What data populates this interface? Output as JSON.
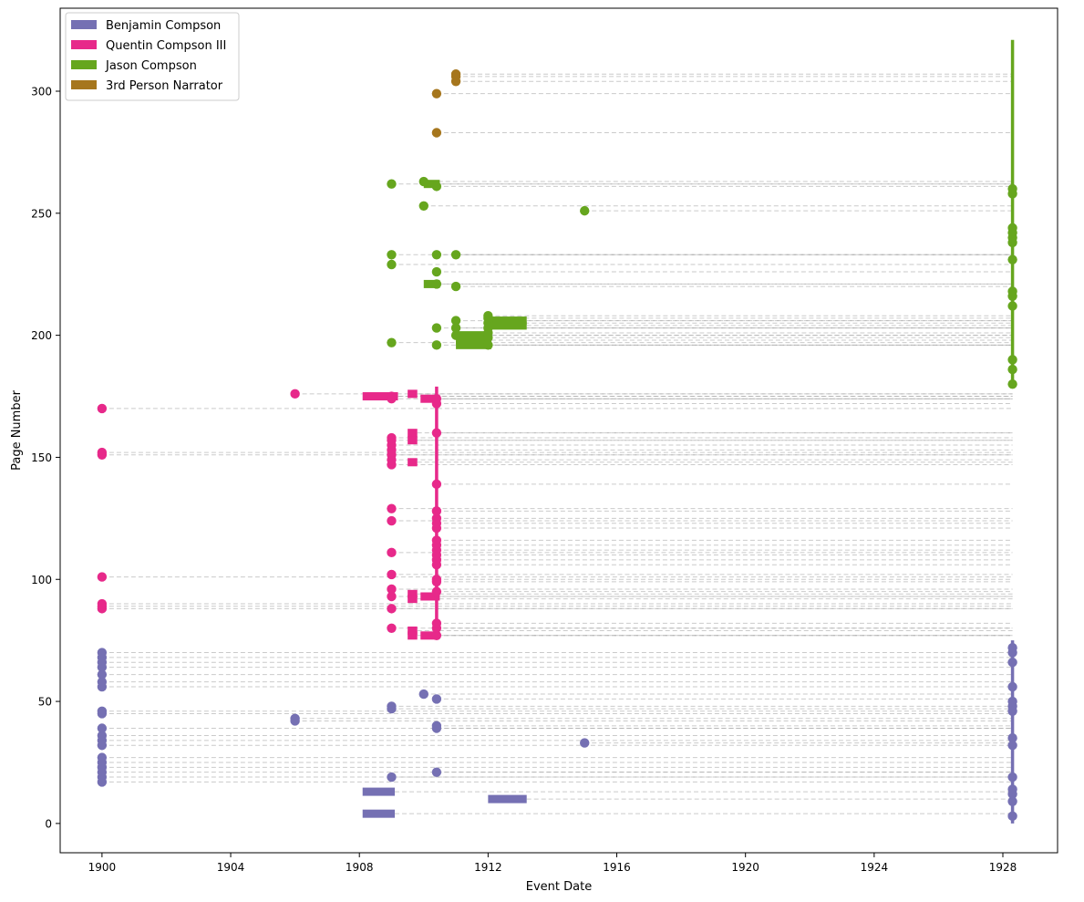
{
  "chart_data": {
    "type": "scatter",
    "xlabel": "Event Date",
    "ylabel": "Page Number",
    "xlim": [
      1898.7,
      1929.7
    ],
    "ylim": [
      -12,
      334
    ],
    "xticks": [
      1900,
      1904,
      1908,
      1912,
      1916,
      1920,
      1924,
      1928
    ],
    "yticks": [
      0,
      50,
      100,
      150,
      200,
      250,
      300
    ],
    "grid": false,
    "legend_placement": "top-left",
    "reading_year": 1928.3,
    "series": [
      {
        "name": "Benjamin Compson",
        "color": "#7570b3",
        "points": [
          {
            "x": 1900,
            "y": 17
          },
          {
            "x": 1900,
            "y": 19
          },
          {
            "x": 1900,
            "y": 21
          },
          {
            "x": 1900,
            "y": 23
          },
          {
            "x": 1900,
            "y": 25
          },
          {
            "x": 1900,
            "y": 27
          },
          {
            "x": 1900,
            "y": 32
          },
          {
            "x": 1900,
            "y": 34
          },
          {
            "x": 1900,
            "y": 36
          },
          {
            "x": 1900,
            "y": 39
          },
          {
            "x": 1900,
            "y": 45
          },
          {
            "x": 1900,
            "y": 46
          },
          {
            "x": 1900,
            "y": 56
          },
          {
            "x": 1900,
            "y": 58
          },
          {
            "x": 1900,
            "y": 61
          },
          {
            "x": 1900,
            "y": 64
          },
          {
            "x": 1900,
            "y": 66
          },
          {
            "x": 1900,
            "y": 68
          },
          {
            "x": 1900,
            "y": 70
          },
          {
            "x": 1906,
            "y": 42
          },
          {
            "x": 1906,
            "y": 43
          },
          {
            "x": 1909,
            "y": 19
          },
          {
            "x": 1909,
            "y": 47
          },
          {
            "x": 1909,
            "y": 48
          },
          {
            "x": 1910,
            "y": 53
          },
          {
            "x": 1910.4,
            "y": 21
          },
          {
            "x": 1910.4,
            "y": 39
          },
          {
            "x": 1910.4,
            "y": 40
          },
          {
            "x": 1910.4,
            "y": 51
          },
          {
            "x": 1915,
            "y": 33
          },
          {
            "x": 1928.3,
            "y": 3
          },
          {
            "x": 1928.3,
            "y": 9
          },
          {
            "x": 1928.3,
            "y": 12
          },
          {
            "x": 1928.3,
            "y": 14
          },
          {
            "x": 1928.3,
            "y": 19
          },
          {
            "x": 1928.3,
            "y": 32
          },
          {
            "x": 1928.3,
            "y": 35
          },
          {
            "x": 1928.3,
            "y": 46
          },
          {
            "x": 1928.3,
            "y": 48
          },
          {
            "x": 1928.3,
            "y": 50
          },
          {
            "x": 1928.3,
            "y": 56
          },
          {
            "x": 1928.3,
            "y": 66
          },
          {
            "x": 1928.3,
            "y": 70
          },
          {
            "x": 1928.3,
            "y": 72
          }
        ],
        "ranges": [
          {
            "x1": 1908.1,
            "x2": 1909.1,
            "y": 13
          },
          {
            "x1": 1908.1,
            "x2": 1909.1,
            "y": 4
          },
          {
            "x1": 1912,
            "x2": 1913.2,
            "y": 10
          }
        ],
        "present_span": [
          0,
          75
        ]
      },
      {
        "name": "Quentin Compson III",
        "color": "#e7298a",
        "points": [
          {
            "x": 1900,
            "y": 88
          },
          {
            "x": 1900,
            "y": 89
          },
          {
            "x": 1900,
            "y": 90
          },
          {
            "x": 1900,
            "y": 101
          },
          {
            "x": 1900,
            "y": 151
          },
          {
            "x": 1900,
            "y": 152
          },
          {
            "x": 1900,
            "y": 170
          },
          {
            "x": 1906,
            "y": 176
          },
          {
            "x": 1909,
            "y": 80
          },
          {
            "x": 1909,
            "y": 88
          },
          {
            "x": 1909,
            "y": 93
          },
          {
            "x": 1909,
            "y": 96
          },
          {
            "x": 1909,
            "y": 102
          },
          {
            "x": 1909,
            "y": 111
          },
          {
            "x": 1909,
            "y": 124
          },
          {
            "x": 1909,
            "y": 129
          },
          {
            "x": 1909,
            "y": 147
          },
          {
            "x": 1909,
            "y": 149
          },
          {
            "x": 1909,
            "y": 151
          },
          {
            "x": 1909,
            "y": 153
          },
          {
            "x": 1909,
            "y": 155
          },
          {
            "x": 1909,
            "y": 157
          },
          {
            "x": 1909,
            "y": 158
          },
          {
            "x": 1909,
            "y": 174
          },
          {
            "x": 1909,
            "y": 175
          },
          {
            "x": 1910.4,
            "y": 77
          },
          {
            "x": 1910.4,
            "y": 80
          },
          {
            "x": 1910.4,
            "y": 82
          },
          {
            "x": 1910.4,
            "y": 95
          },
          {
            "x": 1910.4,
            "y": 99
          },
          {
            "x": 1910.4,
            "y": 100
          },
          {
            "x": 1910.4,
            "y": 106
          },
          {
            "x": 1910.4,
            "y": 108
          },
          {
            "x": 1910.4,
            "y": 110
          },
          {
            "x": 1910.4,
            "y": 112
          },
          {
            "x": 1910.4,
            "y": 114
          },
          {
            "x": 1910.4,
            "y": 116
          },
          {
            "x": 1910.4,
            "y": 121
          },
          {
            "x": 1910.4,
            "y": 123
          },
          {
            "x": 1910.4,
            "y": 125
          },
          {
            "x": 1910.4,
            "y": 128
          },
          {
            "x": 1910.4,
            "y": 139
          },
          {
            "x": 1910.4,
            "y": 160
          },
          {
            "x": 1910.4,
            "y": 172
          },
          {
            "x": 1910.4,
            "y": 174
          }
        ],
        "ranges": [
          {
            "x1": 1908.1,
            "x2": 1909.2,
            "y": 175
          },
          {
            "x1": 1909.5,
            "x2": 1909.8,
            "y": 176
          },
          {
            "x1": 1909.5,
            "x2": 1909.8,
            "y": 160
          },
          {
            "x1": 1909.5,
            "x2": 1909.8,
            "y": 157
          },
          {
            "x1": 1909.5,
            "x2": 1909.8,
            "y": 148
          },
          {
            "x1": 1909.5,
            "x2": 1909.8,
            "y": 94
          },
          {
            "x1": 1909.5,
            "x2": 1909.8,
            "y": 92
          },
          {
            "x1": 1909.9,
            "x2": 1910.5,
            "y": 93
          },
          {
            "x1": 1909.5,
            "x2": 1909.8,
            "y": 79
          },
          {
            "x1": 1909.5,
            "x2": 1909.8,
            "y": 77
          },
          {
            "x1": 1909.9,
            "x2": 1910.4,
            "y": 77
          },
          {
            "x1": 1909.9,
            "x2": 1910.5,
            "y": 174
          }
        ],
        "present_span": [
          77,
          179
        ]
      },
      {
        "name": "Jason Compson",
        "color": "#66a61e",
        "points": [
          {
            "x": 1909,
            "y": 197
          },
          {
            "x": 1909,
            "y": 229
          },
          {
            "x": 1909,
            "y": 233
          },
          {
            "x": 1909,
            "y": 262
          },
          {
            "x": 1910,
            "y": 253
          },
          {
            "x": 1910,
            "y": 263
          },
          {
            "x": 1910.4,
            "y": 196
          },
          {
            "x": 1910.4,
            "y": 203
          },
          {
            "x": 1910.4,
            "y": 221
          },
          {
            "x": 1910.4,
            "y": 226
          },
          {
            "x": 1910.4,
            "y": 233
          },
          {
            "x": 1910.4,
            "y": 261
          },
          {
            "x": 1911,
            "y": 200
          },
          {
            "x": 1911,
            "y": 203
          },
          {
            "x": 1911,
            "y": 206
          },
          {
            "x": 1911,
            "y": 220
          },
          {
            "x": 1911,
            "y": 233
          },
          {
            "x": 1912,
            "y": 196
          },
          {
            "x": 1912,
            "y": 199
          },
          {
            "x": 1912,
            "y": 201
          },
          {
            "x": 1912,
            "y": 203
          },
          {
            "x": 1912,
            "y": 205
          },
          {
            "x": 1912,
            "y": 207
          },
          {
            "x": 1912,
            "y": 208
          },
          {
            "x": 1915,
            "y": 251
          },
          {
            "x": 1928.3,
            "y": 180
          },
          {
            "x": 1928.3,
            "y": 186
          },
          {
            "x": 1928.3,
            "y": 190
          },
          {
            "x": 1928.3,
            "y": 212
          },
          {
            "x": 1928.3,
            "y": 216
          },
          {
            "x": 1928.3,
            "y": 218
          },
          {
            "x": 1928.3,
            "y": 231
          },
          {
            "x": 1928.3,
            "y": 238
          },
          {
            "x": 1928.3,
            "y": 240
          },
          {
            "x": 1928.3,
            "y": 242
          },
          {
            "x": 1928.3,
            "y": 244
          },
          {
            "x": 1928.3,
            "y": 258
          },
          {
            "x": 1928.3,
            "y": 260
          }
        ],
        "ranges": [
          {
            "x1": 1910,
            "x2": 1910.5,
            "y": 262
          },
          {
            "x1": 1910,
            "x2": 1910.5,
            "y": 221
          },
          {
            "x1": 1911,
            "x2": 1912.1,
            "y": 200
          },
          {
            "x1": 1911,
            "x2": 1912.1,
            "y": 198
          },
          {
            "x1": 1911,
            "x2": 1912.1,
            "y": 196
          },
          {
            "x1": 1912,
            "x2": 1913.2,
            "y": 206
          },
          {
            "x1": 1912,
            "x2": 1913.2,
            "y": 204
          }
        ],
        "present_span": [
          180,
          321
        ]
      },
      {
        "name": "3rd Person Narrator",
        "color": "#a6761d",
        "points": [
          {
            "x": 1910.4,
            "y": 283
          },
          {
            "x": 1910.4,
            "y": 299
          },
          {
            "x": 1911,
            "y": 304
          },
          {
            "x": 1911,
            "y": 306
          },
          {
            "x": 1911,
            "y": 307
          }
        ],
        "ranges": [],
        "present_span": null
      }
    ]
  }
}
